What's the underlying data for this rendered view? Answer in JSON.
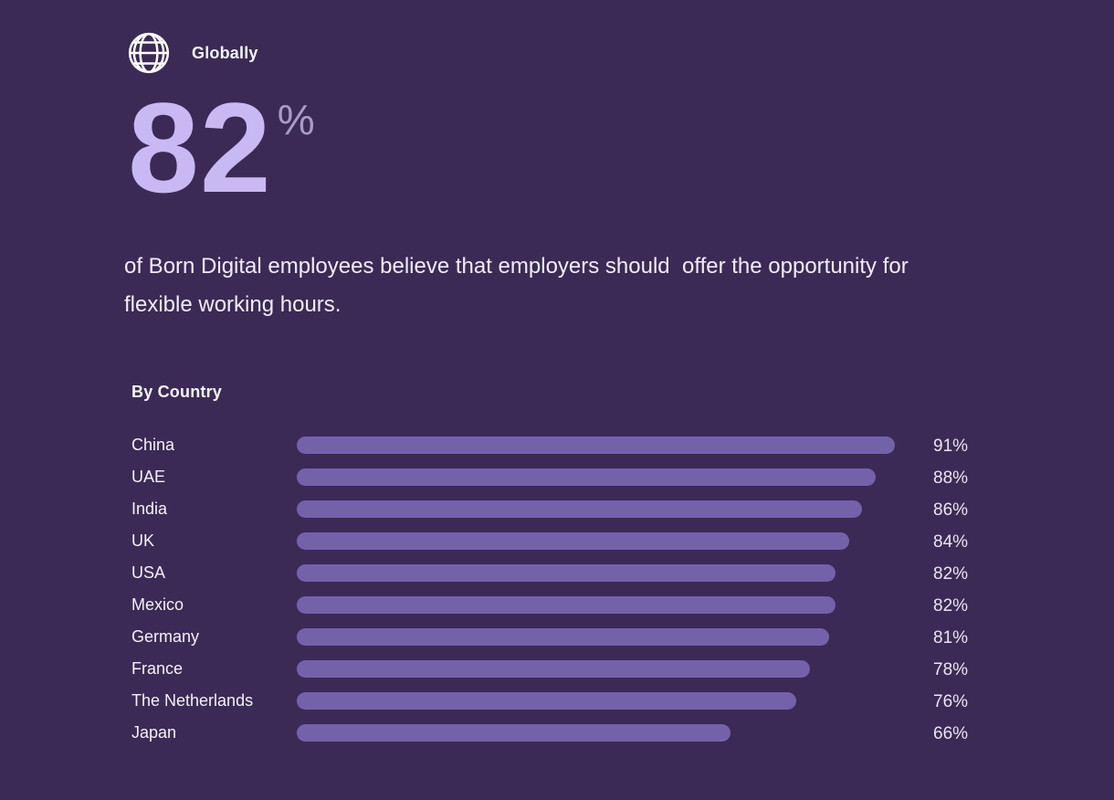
{
  "header": {
    "icon": "globe",
    "label": "Globally"
  },
  "stat": {
    "value": "82",
    "unit": "%"
  },
  "description": "of Born Digital employees believe that employers should  offer the opportunity for flexible working hours.",
  "chart_data": {
    "type": "bar",
    "orientation": "horizontal",
    "title": "By Country",
    "categories": [
      "China",
      "UAE",
      "India",
      "UK",
      "USA",
      "Mexico",
      "Germany",
      "France",
      "The Netherlands",
      "Japan"
    ],
    "values": [
      91,
      88,
      86,
      84,
      82,
      82,
      81,
      78,
      76,
      66
    ],
    "value_labels": [
      "91%",
      "88%",
      "86%",
      "84%",
      "82%",
      "82%",
      "81%",
      "78%",
      "76%",
      "66%"
    ],
    "unit": "%",
    "xlim": [
      0,
      100
    ],
    "grid": false,
    "legend": false,
    "value_label_position": "right",
    "bar_color": "#7362aa"
  },
  "colors": {
    "background": "#3b2a55",
    "bar": "#7362aa",
    "stat_value": "#c9b9f2",
    "stat_unit": "#a69cc8",
    "text": "#f4f1f8"
  }
}
